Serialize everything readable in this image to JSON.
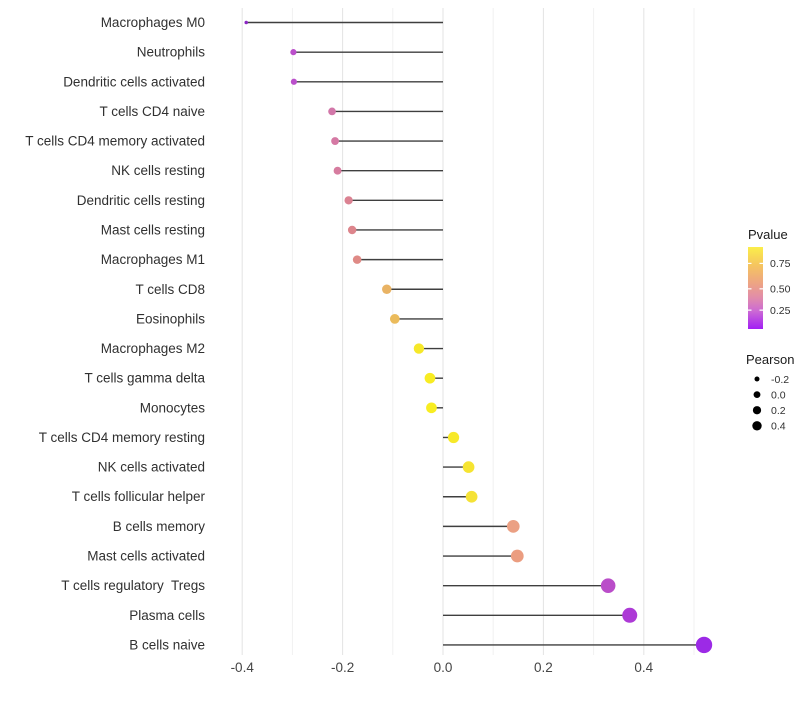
{
  "chart_data": {
    "type": "lollipop",
    "title": "",
    "xlabel": "",
    "ylabel": "",
    "xlim": [
      -0.45,
      0.55
    ],
    "grid": true,
    "x_ticks": [
      "-0.4",
      "-0.2",
      "0.0",
      "0.2",
      "0.4"
    ],
    "x_minor_ticks": [
      -0.3,
      -0.1,
      0.1,
      0.3,
      0.5
    ],
    "stem_color": "#3f3f3f",
    "points": [
      {
        "label": "Macrophages M0",
        "pearson": -0.392,
        "color": "#8b27c3"
      },
      {
        "label": "Neutrophils",
        "pearson": -0.298,
        "color": "#bb4fcb"
      },
      {
        "label": "Dendritic cells activated",
        "pearson": -0.297,
        "color": "#ba4fcb"
      },
      {
        "label": "T cells CD4 naive",
        "pearson": -0.221,
        "color": "#d277a9"
      },
      {
        "label": "T cells CD4 memory activated",
        "pearson": -0.215,
        "color": "#d579a4"
      },
      {
        "label": "NK cells resting",
        "pearson": -0.21,
        "color": "#d67c9f"
      },
      {
        "label": "Dendritic cells resting",
        "pearson": -0.188,
        "color": "#db8292"
      },
      {
        "label": "Mast cells resting",
        "pearson": -0.181,
        "color": "#dd858c"
      },
      {
        "label": "Macrophages M1",
        "pearson": -0.171,
        "color": "#df8a86"
      },
      {
        "label": "T cells CD8",
        "pearson": -0.112,
        "color": "#e9b364"
      },
      {
        "label": "Eosinophils",
        "pearson": -0.096,
        "color": "#ebbb5b"
      },
      {
        "label": "Macrophages M2",
        "pearson": -0.048,
        "color": "#f6e829"
      },
      {
        "label": "T cells gamma delta",
        "pearson": -0.026,
        "color": "#f8ec23"
      },
      {
        "label": "Monocytes",
        "pearson": -0.023,
        "color": "#f8ed22"
      },
      {
        "label": "T cells CD4 memory resting",
        "pearson": 0.021,
        "color": "#f7e92a"
      },
      {
        "label": "NK cells activated",
        "pearson": 0.051,
        "color": "#f6e431"
      },
      {
        "label": "T cells follicular helper",
        "pearson": 0.057,
        "color": "#f5e237"
      },
      {
        "label": "B cells memory",
        "pearson": 0.14,
        "color": "#eba083"
      },
      {
        "label": "Mast cells activated",
        "pearson": 0.148,
        "color": "#eb9d80"
      },
      {
        "label": "T cells regulatory  Tregs",
        "pearson": 0.329,
        "color": "#ba4dc9"
      },
      {
        "label": "Plasma cells",
        "pearson": 0.372,
        "color": "#ad3ad6"
      },
      {
        "label": "B cells naive",
        "pearson": 0.52,
        "color": "#9c2ae6"
      }
    ],
    "legend": {
      "pvalue": {
        "title": "Pvalue",
        "ticks": [
          "0.75",
          "0.50",
          "0.25"
        ],
        "gradient": [
          {
            "offset": "0%",
            "color": "#fbee4a"
          },
          {
            "offset": "22%",
            "color": "#f5c55f"
          },
          {
            "offset": "45%",
            "color": "#eda385"
          },
          {
            "offset": "62%",
            "color": "#e18cab"
          },
          {
            "offset": "78%",
            "color": "#cc6ad4"
          },
          {
            "offset": "100%",
            "color": "#a21ff4"
          }
        ]
      },
      "pearson": {
        "title": "Pearson",
        "items": [
          {
            "label": "-0.2",
            "value": -0.2
          },
          {
            "label": "0.0",
            "value": 0.0
          },
          {
            "label": "0.2",
            "value": 0.2
          },
          {
            "label": "0.4",
            "value": 0.4
          }
        ]
      }
    }
  }
}
